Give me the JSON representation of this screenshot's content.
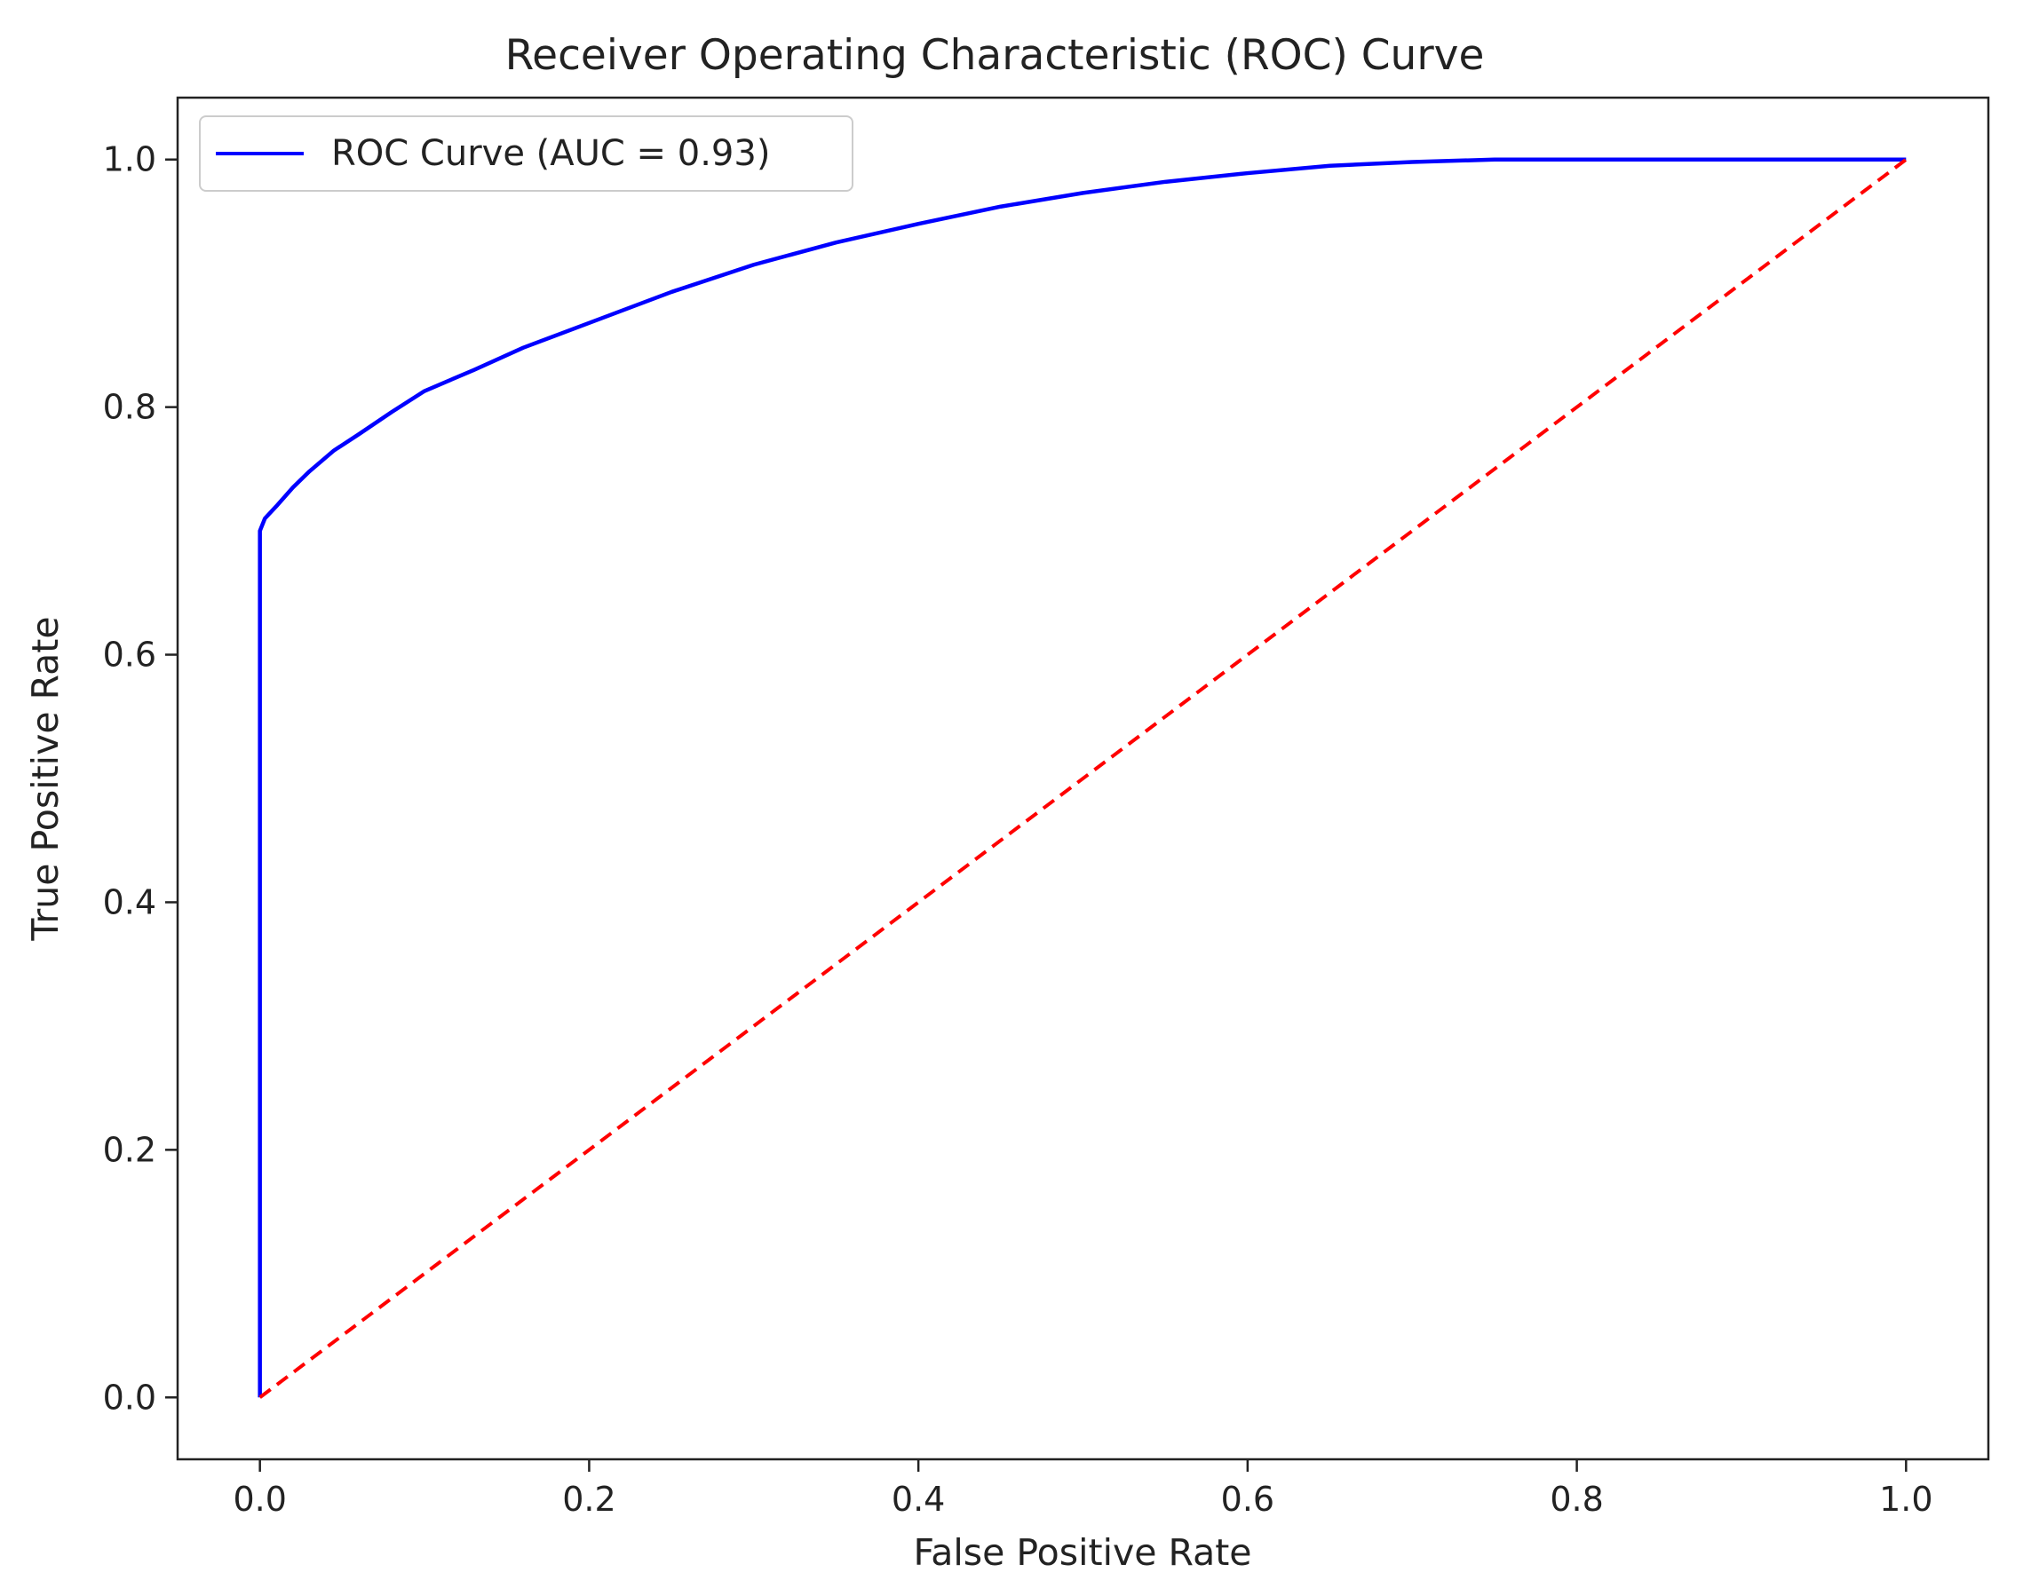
{
  "chart_data": {
    "type": "line",
    "title": "Receiver Operating Characteristic (ROC) Curve",
    "xlabel": "False Positive Rate",
    "ylabel": "True Positive Rate",
    "xlim": [
      -0.05,
      1.05
    ],
    "ylim": [
      -0.05,
      1.05
    ],
    "xticks": [
      0.0,
      0.2,
      0.4,
      0.6,
      0.8,
      1.0
    ],
    "xtick_labels": [
      "0.0",
      "0.2",
      "0.4",
      "0.6",
      "0.8",
      "1.0"
    ],
    "yticks": [
      0.0,
      0.2,
      0.4,
      0.6,
      0.8,
      1.0
    ],
    "ytick_labels": [
      "0.0",
      "0.2",
      "0.4",
      "0.6",
      "0.8",
      "1.0"
    ],
    "grid": false,
    "legend_position": "upper-left",
    "series": [
      {
        "name": "ROC Curve (AUC = 0.93)",
        "color": "#0000ff",
        "style": "solid",
        "x": [
          0.0,
          0.0,
          0.0,
          0.003,
          0.01,
          0.02,
          0.03,
          0.045,
          0.06,
          0.08,
          0.1,
          0.13,
          0.16,
          0.2,
          0.25,
          0.3,
          0.35,
          0.4,
          0.45,
          0.5,
          0.55,
          0.6,
          0.65,
          0.7,
          0.75,
          0.8,
          0.85,
          0.9,
          1.0
        ],
        "y": [
          0.0,
          0.3,
          0.7,
          0.71,
          0.72,
          0.735,
          0.748,
          0.765,
          0.778,
          0.796,
          0.813,
          0.83,
          0.848,
          0.868,
          0.893,
          0.915,
          0.933,
          0.948,
          0.962,
          0.973,
          0.982,
          0.989,
          0.995,
          0.998,
          1.0,
          1.0,
          1.0,
          1.0,
          1.0
        ]
      },
      {
        "name": "",
        "color": "#ff0000",
        "style": "dashed",
        "x": [
          0.0,
          1.0
        ],
        "y": [
          0.0,
          1.0
        ]
      }
    ]
  }
}
